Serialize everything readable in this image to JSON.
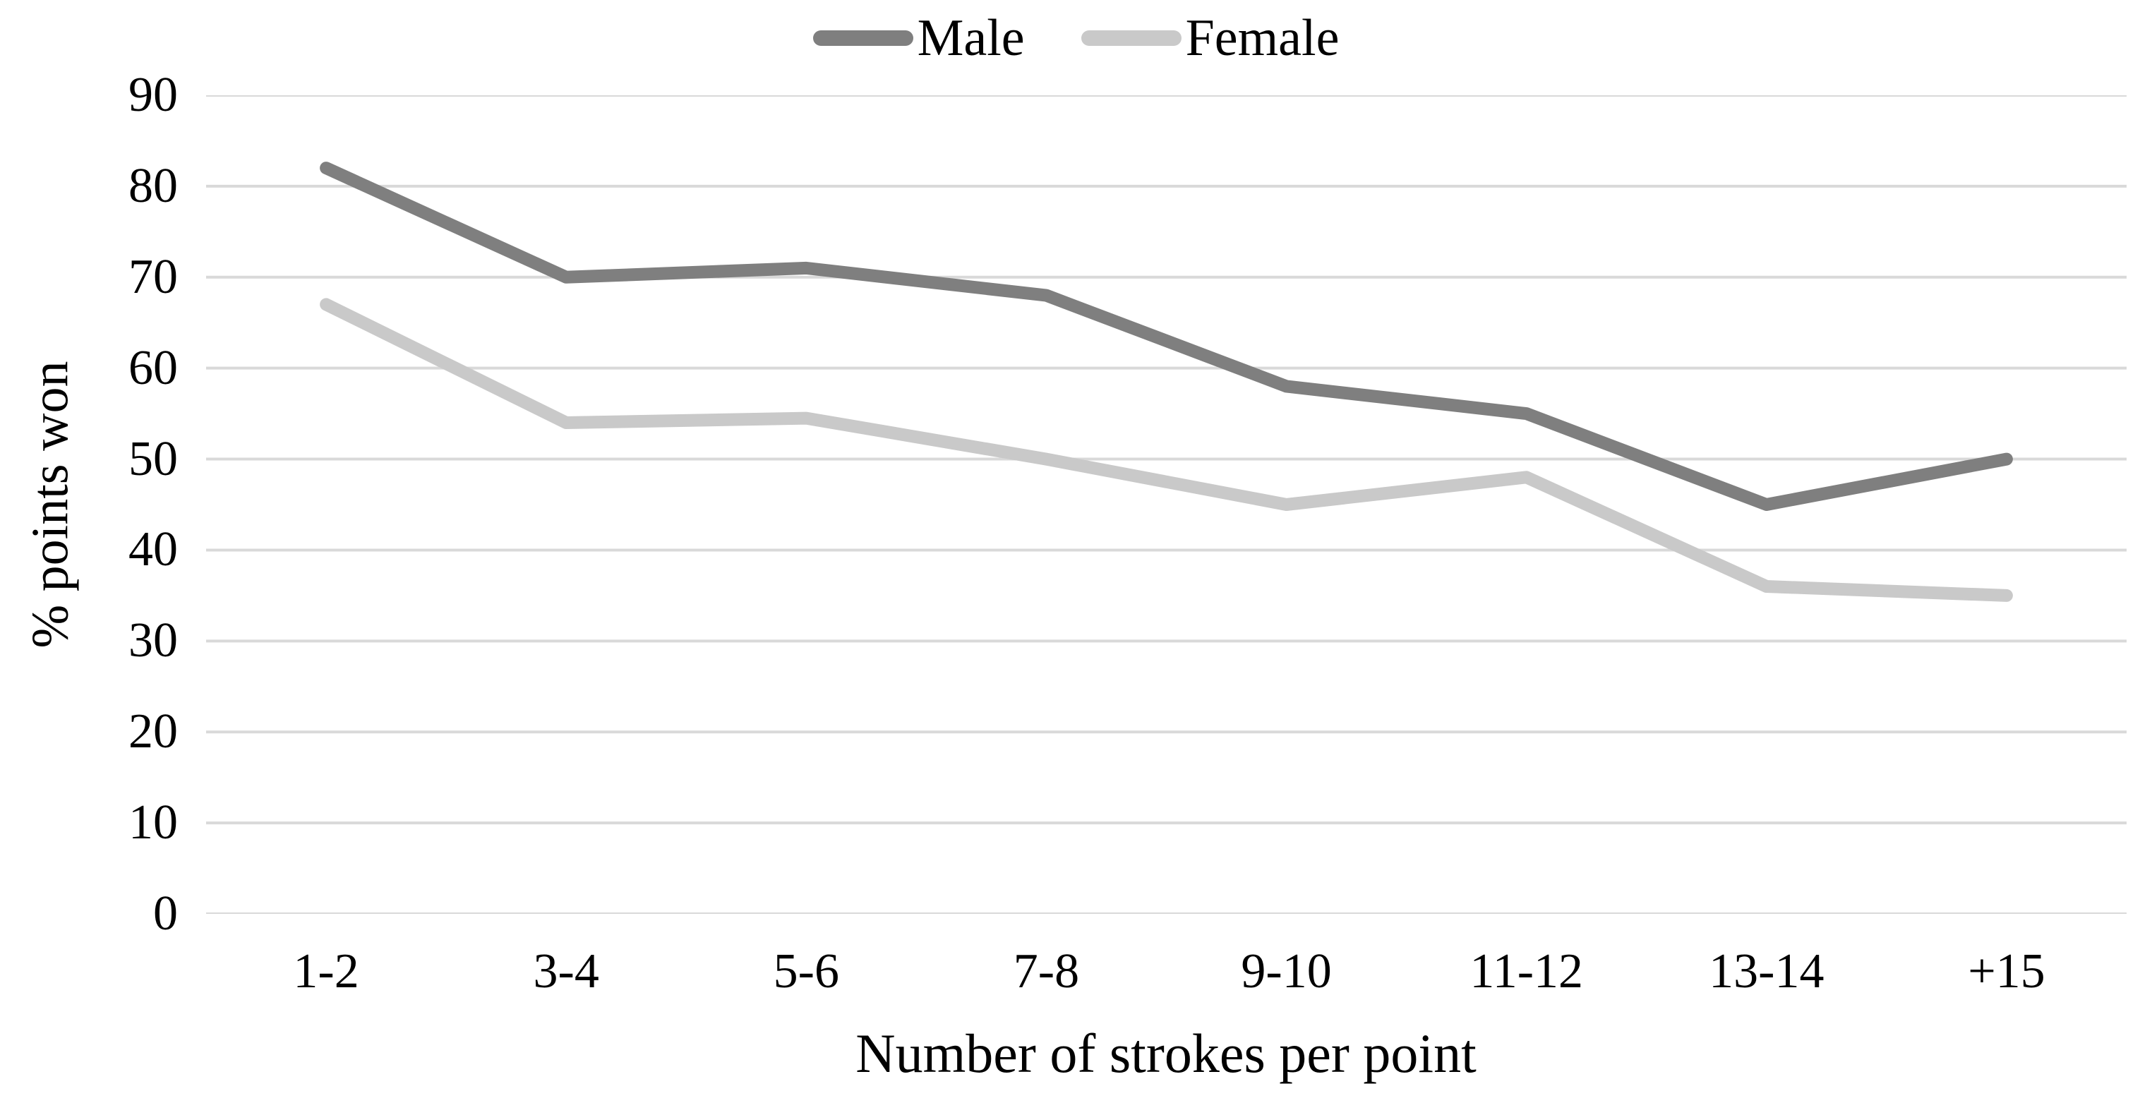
{
  "figure": {
    "background": "#ffffff",
    "text_color": "#000000"
  },
  "chart_data": {
    "type": "line",
    "title": "",
    "categories": [
      "1-2",
      "3-4",
      "5-6",
      "7-8",
      "9-10",
      "11-12",
      "13-14",
      "+15"
    ],
    "series": [
      {
        "name": "Male",
        "color": "#7f7f7f",
        "values": [
          82,
          70,
          71,
          68,
          58,
          55,
          45,
          50
        ]
      },
      {
        "name": "Female",
        "color": "#c9c9c9",
        "values": [
          67,
          54,
          54.5,
          50,
          45,
          48,
          36,
          35
        ]
      }
    ],
    "xlabel": "Number of strokes per point",
    "ylabel": "% points won",
    "ylim": [
      0,
      90
    ],
    "ytick_step": 10,
    "yticks": [
      90,
      80,
      70,
      60,
      50,
      40,
      30,
      20,
      10,
      0
    ],
    "grid": "horizontal",
    "gridline_color": "#d9d9d9",
    "line_width": 18,
    "legend_position": "top-center"
  }
}
